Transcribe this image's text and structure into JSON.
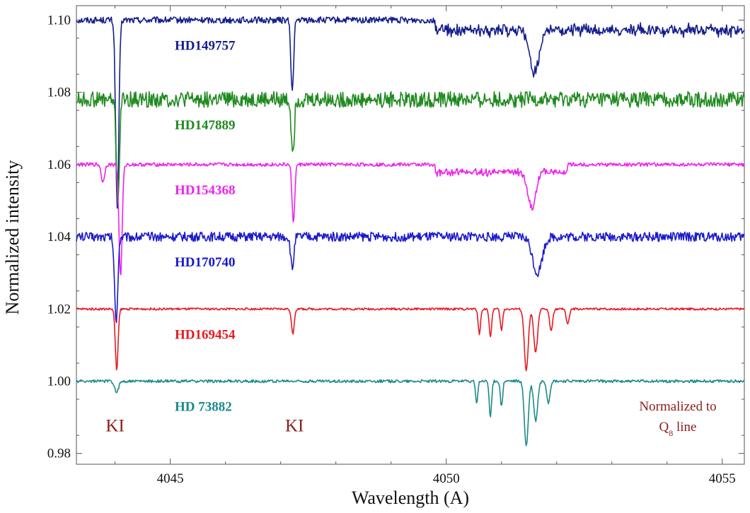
{
  "chart_data": {
    "type": "line",
    "xlabel": "Wavelength (A)",
    "ylabel": "Normalized intensity",
    "xlim": [
      4043.3,
      4055.4
    ],
    "ylim": [
      0.977,
      1.104
    ],
    "x_ticks": [
      4045,
      4050,
      4055
    ],
    "x_tick_labels": [
      "4045",
      "4050",
      "4055"
    ],
    "y_ticks": [
      0.98,
      1.0,
      1.02,
      1.04,
      1.06,
      1.08,
      1.1
    ],
    "y_tick_labels": [
      "0.98",
      "1.00",
      "1.02",
      "1.04",
      "1.06",
      "1.08",
      "1.10"
    ],
    "grid": false,
    "legend": "none (labels placed beside each spectrum)",
    "series": [
      {
        "name": "HD149757",
        "color": "#141e8c",
        "offset": 1.1,
        "noise": 0.0009,
        "features": [
          {
            "x": 4044.04,
            "depth": 0.052,
            "width": 0.04
          },
          {
            "x": 4047.21,
            "depth": 0.02,
            "width": 0.035
          },
          {
            "x": 4051.6,
            "depth": 0.012,
            "width": 0.12
          }
        ],
        "step": {
          "from": 4049.8,
          "to": 4055.4,
          "depth": 0.004
        }
      },
      {
        "name": "HD147889",
        "color": "#1f8a1f",
        "offset": 1.078,
        "noise": 0.0022,
        "features": [
          {
            "x": 4044.05,
            "depth": 0.028,
            "width": 0.04
          },
          {
            "x": 4047.22,
            "depth": 0.014,
            "width": 0.04
          }
        ]
      },
      {
        "name": "HD154368",
        "color": "#ee22ee",
        "offset": 1.06,
        "noise": 0.0005,
        "features": [
          {
            "x": 4043.78,
            "depth": 0.005,
            "width": 0.04
          },
          {
            "x": 4044.1,
            "depth": 0.031,
            "width": 0.04
          },
          {
            "x": 4047.23,
            "depth": 0.016,
            "width": 0.035
          },
          {
            "x": 4051.55,
            "depth": 0.01,
            "width": 0.1
          }
        ],
        "step": {
          "from": 4049.8,
          "to": 4052.2,
          "depth": 0.003
        }
      },
      {
        "name": "HD170740",
        "color": "#1a1acc",
        "offset": 1.04,
        "noise": 0.0013,
        "features": [
          {
            "x": 4044.02,
            "depth": 0.024,
            "width": 0.04
          },
          {
            "x": 4047.21,
            "depth": 0.009,
            "width": 0.04
          },
          {
            "x": 4051.65,
            "depth": 0.01,
            "width": 0.12
          }
        ]
      },
      {
        "name": "HD169454",
        "color": "#e8191f",
        "offset": 1.02,
        "noise": 0.0003,
        "features": [
          {
            "x": 4044.03,
            "depth": 0.017,
            "width": 0.035
          },
          {
            "x": 4047.22,
            "depth": 0.007,
            "width": 0.035
          },
          {
            "x": 4050.6,
            "depth": 0.007,
            "width": 0.03
          },
          {
            "x": 4050.8,
            "depth": 0.008,
            "width": 0.03
          },
          {
            "x": 4051.0,
            "depth": 0.006,
            "width": 0.03
          },
          {
            "x": 4051.45,
            "depth": 0.017,
            "width": 0.05
          },
          {
            "x": 4051.62,
            "depth": 0.012,
            "width": 0.05
          },
          {
            "x": 4051.9,
            "depth": 0.006,
            "width": 0.04
          },
          {
            "x": 4052.2,
            "depth": 0.004,
            "width": 0.04
          }
        ]
      },
      {
        "name": "HD 73882",
        "color": "#1b8a8a",
        "offset": 1.0,
        "noise": 0.0004,
        "features": [
          {
            "x": 4044.03,
            "depth": 0.003,
            "width": 0.05
          },
          {
            "x": 4050.55,
            "depth": 0.006,
            "width": 0.03
          },
          {
            "x": 4050.8,
            "depth": 0.01,
            "width": 0.03
          },
          {
            "x": 4051.0,
            "depth": 0.007,
            "width": 0.03
          },
          {
            "x": 4051.45,
            "depth": 0.018,
            "width": 0.05
          },
          {
            "x": 4051.62,
            "depth": 0.011,
            "width": 0.05
          },
          {
            "x": 4051.85,
            "depth": 0.006,
            "width": 0.04
          }
        ]
      }
    ],
    "annotations": [
      {
        "text": "KI",
        "x": 4044.0,
        "y": 0.9955
      },
      {
        "text": "KI",
        "x": 4047.25,
        "y": 0.9955
      }
    ],
    "note": {
      "line1": "Normalized to",
      "line2_main": "Q",
      "line2_sub": "8",
      "line2_tail": " line"
    }
  }
}
